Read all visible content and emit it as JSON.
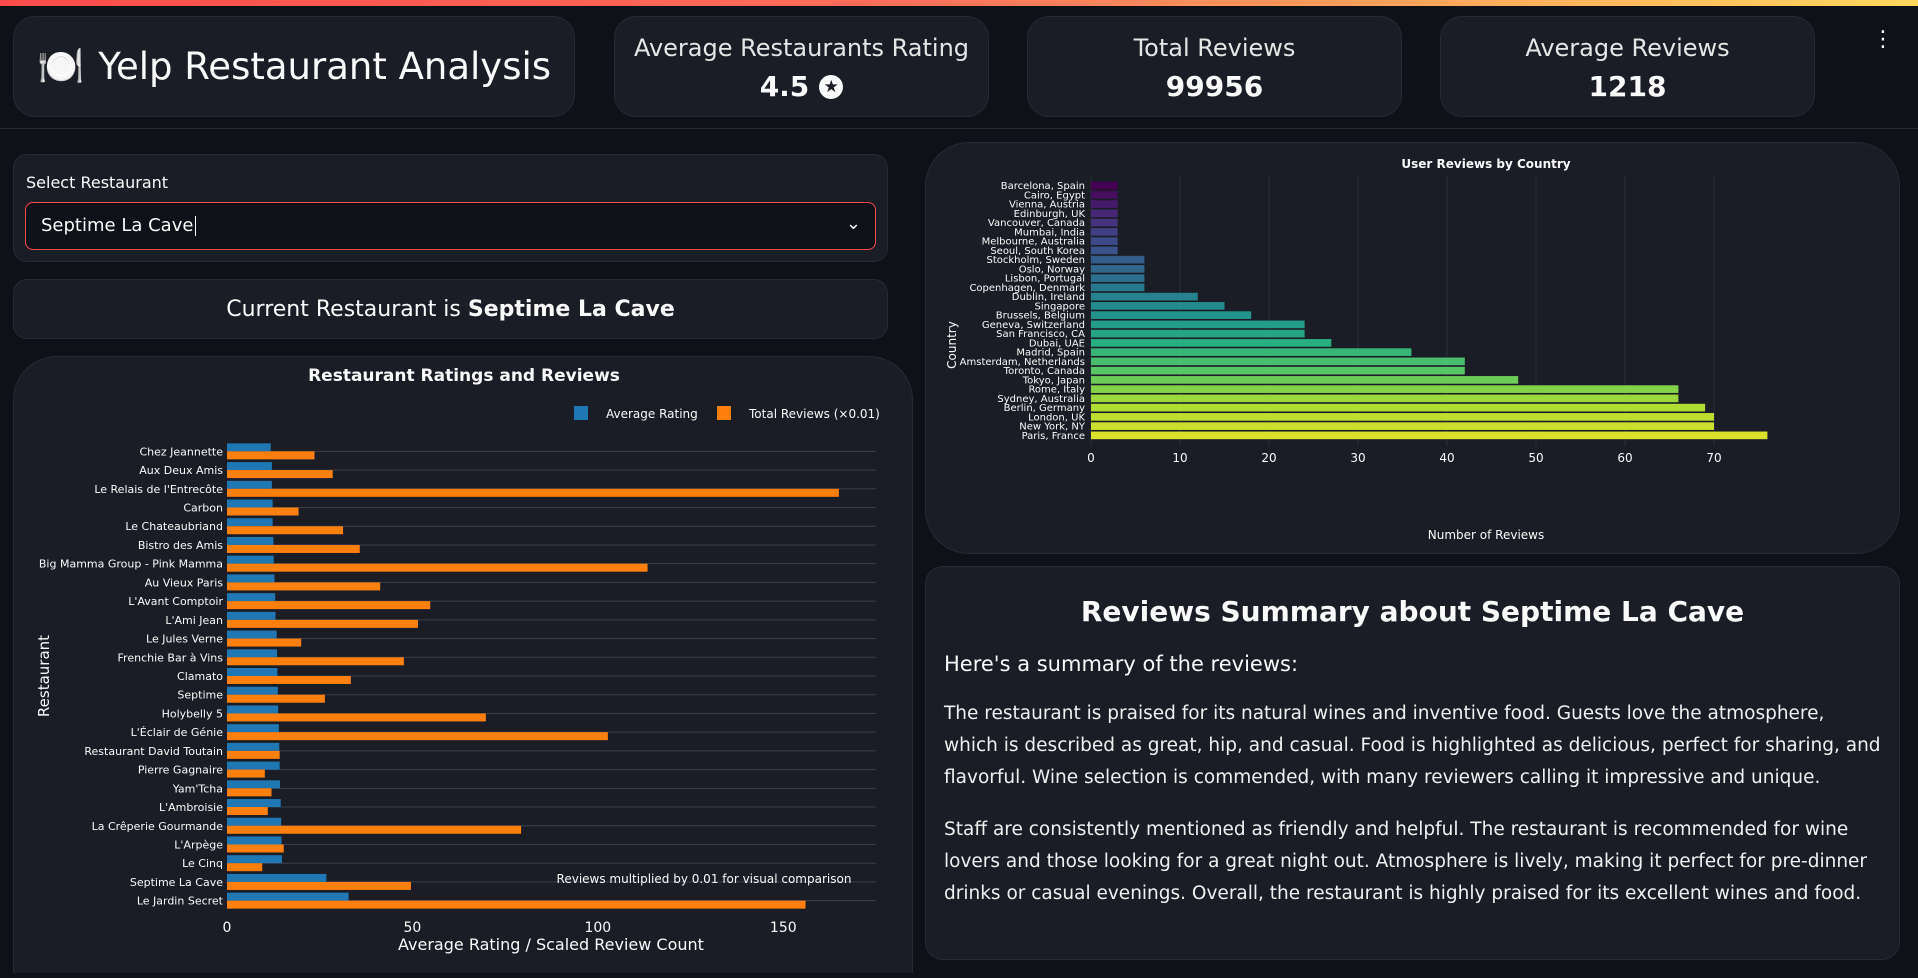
{
  "header": {
    "icon": "fork-plate-icon",
    "title_emoji": "🍽️",
    "title": "Yelp Restaurant Analysis",
    "metrics": [
      {
        "label": "Average Restaurants Rating",
        "value": "4.5",
        "icon": "star-circle-icon"
      },
      {
        "label": "Total Reviews",
        "value": "99956"
      },
      {
        "label": "Average Reviews",
        "value": "1218"
      }
    ],
    "menu_icon": "kebab-menu-icon"
  },
  "selector": {
    "label": "Select Restaurant",
    "value": "Septime La Cave",
    "icon": "chevron-down-icon"
  },
  "current": {
    "prefix": "Current Restaurant is",
    "name": "Septime La Cave"
  },
  "summary": {
    "title": "Reviews Summary about Septime La Cave",
    "intro": "Here's a summary of the reviews:",
    "paragraph1": "The restaurant is praised for its natural wines and inventive food. Guests love the atmosphere, which is described as great, hip, and casual. Food is highlighted as delicious, perfect for sharing, and flavorful. Wine selection is commended, with many reviewers calling it impressive and unique.",
    "paragraph2": "Staff are consistently mentioned as friendly and helpful. The restaurant is recommended for wine lovers and those looking for a great night out. Atmosphere is lively, making it perfect for pre-dinner drinks or casual evenings. Overall, the restaurant is highly praised for its excellent wines and food."
  },
  "chart_data": [
    {
      "type": "bar",
      "orientation": "horizontal",
      "title": "Restaurant Ratings and Reviews",
      "xlabel": "Average Rating / Scaled Review Count",
      "ylabel": "Restaurant",
      "xlim": [
        0,
        175
      ],
      "xticks": [
        0,
        50,
        100,
        150
      ],
      "legend_position": "top-right",
      "annotation": "Reviews multiplied by 0.01 for visual comparison",
      "categories": [
        "Chez Jeannette",
        "Aux Deux Amis",
        "Le Relais de l'Entrecôte",
        "Carbon",
        "Le Chateaubriand",
        "Bistro des Amis",
        "Big Mamma Group - Pink Mamma",
        "Au Vieux Paris",
        "L'Avant Comptoir",
        "L'Ami Jean",
        "Le Jules Verne",
        "Frenchie Bar à Vins",
        "Clamato",
        "Septime",
        "Holybelly 5",
        "L'Éclair de Génie",
        "Restaurant David Toutain",
        "Pierre Gagnaire",
        "Yam'Tcha",
        "L'Ambroisie",
        "La Crêperie Gourmande",
        "L'Arpège",
        "Le Cinq",
        "Septime La Cave",
        "Le Jardin Secret"
      ],
      "series": [
        {
          "name": "Average Rating",
          "color": "#1f77b4",
          "values": [
            11.8,
            12.1,
            12.1,
            12.3,
            12.3,
            12.5,
            12.6,
            12.8,
            13.0,
            13.1,
            13.4,
            13.5,
            13.6,
            13.7,
            13.8,
            14.0,
            14.1,
            14.2,
            14.3,
            14.5,
            14.6,
            14.7,
            14.8,
            26.8,
            32.8
          ]
        },
        {
          "name": "Total Reviews (×0.01)",
          "color": "#ff7f0e",
          "values": [
            23.6,
            28.5,
            165.0,
            19.3,
            31.3,
            35.8,
            113.4,
            41.3,
            54.8,
            51.5,
            20.0,
            47.7,
            33.4,
            26.4,
            69.8,
            102.7,
            14.2,
            10.2,
            12.0,
            11.0,
            79.3,
            15.3,
            9.5,
            49.6,
            156.0
          ]
        }
      ]
    },
    {
      "type": "bar",
      "orientation": "horizontal",
      "title": "User Reviews by Country",
      "xlabel": "Number of Reviews",
      "ylabel": "Country",
      "xlim": [
        0,
        80
      ],
      "xticks": [
        0,
        10,
        20,
        30,
        40,
        50,
        60,
        70
      ],
      "colormap": "viridis",
      "categories": [
        "Barcelona, Spain",
        "Cairo, Egypt",
        "Vienna, Austria",
        "Edinburgh, UK",
        "Vancouver, Canada",
        "Mumbai, India",
        "Melbourne, Australia",
        "Seoul, South Korea",
        "Stockholm, Sweden",
        "Oslo, Norway",
        "Lisbon, Portugal",
        "Copenhagen, Denmark",
        "Dublin, Ireland",
        "Singapore",
        "Brussels, Belgium",
        "Geneva, Switzerland",
        "San Francisco, CA",
        "Dubai, UAE",
        "Madrid, Spain",
        "Amsterdam, Netherlands",
        "Toronto, Canada",
        "Tokyo, Japan",
        "Rome, Italy",
        "Sydney, Australia",
        "Berlin, Germany",
        "London, UK",
        "New York, NY",
        "Paris, France"
      ],
      "values": [
        3,
        3,
        3,
        3,
        3,
        3,
        3,
        3,
        6,
        6,
        6,
        6,
        12,
        15,
        18,
        24,
        24,
        27,
        36,
        42,
        42,
        48,
        66,
        66,
        69,
        70,
        70,
        76
      ]
    }
  ]
}
